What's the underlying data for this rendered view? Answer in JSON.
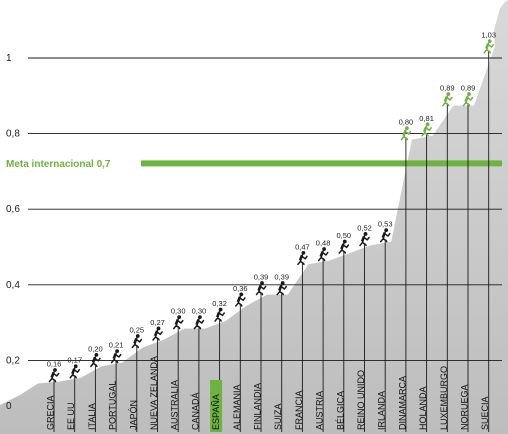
{
  "chart_data": {
    "type": "bar",
    "title": "",
    "xlabel": "",
    "ylabel": "",
    "ylim": [
      0,
      1.1
    ],
    "yticks": [
      {
        "value": 0,
        "label": "0"
      },
      {
        "value": 0.2,
        "label": "0,2"
      },
      {
        "value": 0.4,
        "label": "0,4"
      },
      {
        "value": 0.6,
        "label": "0,6"
      },
      {
        "value": 0.8,
        "label": "0,8"
      },
      {
        "value": 1.0,
        "label": "1"
      }
    ],
    "grid": true,
    "categories": [
      "GRECIA",
      "EE UU",
      "ITALIA",
      "PORTUGAL",
      "JAPÓN",
      "NUEVA ZELANDA",
      "AUSTRALIA",
      "CANADÁ",
      "ESPAÑA",
      "ALEMANIA",
      "FINLANDIA",
      "SUIZA",
      "FRANCIA",
      "AUSTRIA",
      "BÉLGICA",
      "REINO UNIDO",
      "IRLANDA",
      "DINAMARCA",
      "HOLANDA",
      "LUXEMBURGO",
      "NORUEGA",
      "SUECIA"
    ],
    "values": [
      0.16,
      0.17,
      0.2,
      0.21,
      0.25,
      0.27,
      0.3,
      0.3,
      0.32,
      0.36,
      0.39,
      0.39,
      0.47,
      0.48,
      0.5,
      0.52,
      0.53,
      0.8,
      0.81,
      0.89,
      0.89,
      1.03
    ],
    "value_labels": [
      "0,16",
      "0,17",
      "0,20",
      "0,21",
      "0,25",
      "0,27",
      "0,30",
      "0,30",
      "0,32",
      "0,36",
      "0,39",
      "0,39",
      "0,47",
      "0,48",
      "0,50",
      "0,52",
      "0,53",
      "0,80",
      "0,81",
      "0,89",
      "0,89",
      "1,03"
    ],
    "highlight_category": "ESPAÑA",
    "reference_line": {
      "value": 0.7,
      "label": "Meta internacional 0,7"
    },
    "goal_threshold": 0.7,
    "colors": {
      "mountain": "#c9c9c9",
      "accent": "#6cb33f",
      "grid": "#1a1a1a",
      "climber_below": "#1a1a1a",
      "climber_above": "#6cb33f"
    }
  }
}
